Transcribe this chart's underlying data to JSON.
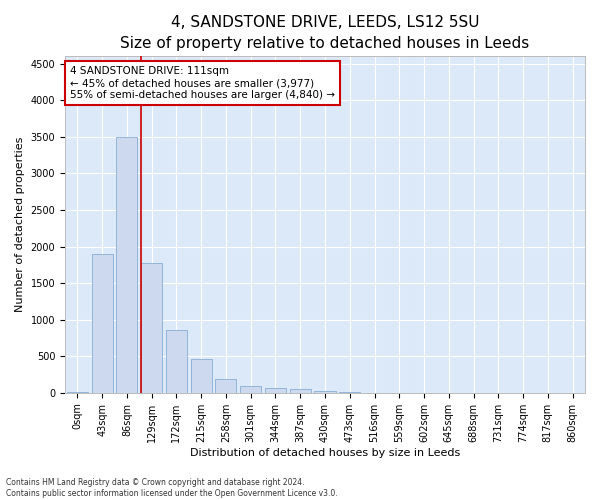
{
  "title1": "4, SANDSTONE DRIVE, LEEDS, LS12 5SU",
  "title2": "Size of property relative to detached houses in Leeds",
  "xlabel": "Distribution of detached houses by size in Leeds",
  "ylabel": "Number of detached properties",
  "bar_labels": [
    "0sqm",
    "43sqm",
    "86sqm",
    "129sqm",
    "172sqm",
    "215sqm",
    "258sqm",
    "301sqm",
    "344sqm",
    "387sqm",
    "430sqm",
    "473sqm",
    "516sqm",
    "559sqm",
    "602sqm",
    "645sqm",
    "688sqm",
    "731sqm",
    "774sqm",
    "817sqm",
    "860sqm"
  ],
  "bar_values": [
    5,
    1900,
    3500,
    1780,
    860,
    460,
    185,
    95,
    70,
    55,
    30,
    10,
    0,
    0,
    0,
    0,
    0,
    0,
    0,
    0,
    0
  ],
  "bar_color": "#ccd9ee",
  "bar_edge_color": "#8aadd4",
  "vline_x": 2.58,
  "vline_color": "#cc0000",
  "annotation_text": "4 SANDSTONE DRIVE: 111sqm\n← 45% of detached houses are smaller (3,977)\n55% of semi-detached houses are larger (4,840) →",
  "annotation_box_color": "white",
  "annotation_box_edge": "#cc0000",
  "ylim": [
    0,
    4600
  ],
  "yticks": [
    0,
    500,
    1000,
    1500,
    2000,
    2500,
    3000,
    3500,
    4000,
    4500
  ],
  "footer1": "Contains HM Land Registry data © Crown copyright and database right 2024.",
  "footer2": "Contains public sector information licensed under the Open Government Licence v3.0.",
  "bg_color": "#dce9f8",
  "title1_fontsize": 11,
  "title2_fontsize": 9,
  "axis_label_fontsize": 8,
  "tick_fontsize": 7,
  "annot_fontsize": 7.5,
  "footer_fontsize": 5.5
}
